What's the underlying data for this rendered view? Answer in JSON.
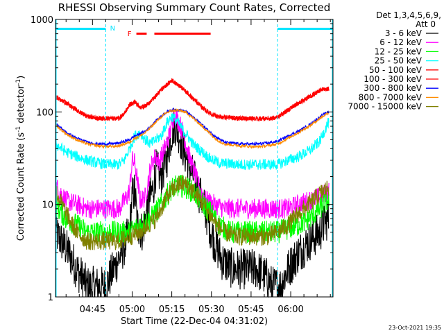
{
  "chart_data": {
    "type": "line",
    "title": "RHESSI Observing Summary Count Rates, Corrected",
    "xlabel": "Start Time (22-Dec-04 04:31:02)",
    "ylabel_main": "Corrected Count Rate (s",
    "ylabel_sup1": "-1",
    "ylabel_mid": " detector",
    "ylabel_sup2": "-1",
    "ylabel_end": ")",
    "yscale": "log",
    "ylim": [
      1,
      1000
    ],
    "xlim_min": [
      0,
      105
    ],
    "x_tick_labels": [
      {
        "label": "04:45",
        "min": 14
      },
      {
        "label": "05:00",
        "min": 29
      },
      {
        "label": "05:15",
        "min": 44
      },
      {
        "label": "05:30",
        "min": 59
      },
      {
        "label": "05:45",
        "min": 74
      },
      {
        "label": "06:00",
        "min": 89
      }
    ],
    "y_tick_labels": [
      {
        "label": "1",
        "value": 1
      },
      {
        "label": "10",
        "value": 10
      },
      {
        "label": "100",
        "value": 100
      },
      {
        "label": "1000",
        "value": 1000
      }
    ],
    "legend": {
      "position": "top-right",
      "header_line1": "Det 1,3,4,5,6,9,",
      "header_line2": "Att 0"
    },
    "night_intervals": [
      {
        "start": 0,
        "end": 19
      },
      {
        "start": 84,
        "end": 105
      }
    ],
    "night_marker": "N",
    "flare_marker": "F",
    "flare_intervals": [
      {
        "start": 30.6,
        "end": 34.5
      },
      {
        "start": 37.4,
        "end": 58.7
      }
    ],
    "series": [
      {
        "name": "3 - 6 keV",
        "color": "#000000",
        "pts": [
          [
            0,
            5
          ],
          [
            5,
            3
          ],
          [
            8,
            2
          ],
          [
            12,
            1.3
          ],
          [
            16,
            1.3
          ],
          [
            19,
            1.3
          ],
          [
            22,
            2
          ],
          [
            25,
            3
          ],
          [
            28,
            5
          ],
          [
            29,
            12
          ],
          [
            30,
            14
          ],
          [
            31,
            6
          ],
          [
            33,
            5
          ],
          [
            35,
            10
          ],
          [
            37,
            15
          ],
          [
            38,
            24
          ],
          [
            40,
            20
          ],
          [
            42,
            30
          ],
          [
            44,
            60
          ],
          [
            45,
            75
          ],
          [
            47,
            55
          ],
          [
            49,
            35
          ],
          [
            51,
            25
          ],
          [
            53,
            17
          ],
          [
            55,
            12
          ],
          [
            57,
            8
          ],
          [
            60,
            4
          ],
          [
            63,
            2.5
          ],
          [
            67,
            2
          ],
          [
            72,
            2
          ],
          [
            76,
            2
          ],
          [
            80,
            1.6
          ],
          [
            82,
            1.3
          ],
          [
            85,
            1.3
          ],
          [
            88,
            2
          ],
          [
            92,
            3
          ],
          [
            96,
            4
          ],
          [
            100,
            5
          ],
          [
            103,
            7
          ]
        ]
      },
      {
        "name": "6 - 12 keV",
        "color": "#ff00ff",
        "pts": [
          [
            0,
            16
          ],
          [
            4,
            11
          ],
          [
            8,
            10
          ],
          [
            12,
            9
          ],
          [
            18,
            9
          ],
          [
            24,
            9
          ],
          [
            27,
            12
          ],
          [
            28,
            14
          ],
          [
            29,
            30
          ],
          [
            30,
            28
          ],
          [
            31,
            18
          ],
          [
            32,
            11
          ],
          [
            34,
            12
          ],
          [
            36,
            25
          ],
          [
            37,
            30
          ],
          [
            38,
            34
          ],
          [
            39,
            28
          ],
          [
            41,
            38
          ],
          [
            43,
            55
          ],
          [
            45,
            95
          ],
          [
            47,
            75
          ],
          [
            49,
            50
          ],
          [
            51,
            30
          ],
          [
            53,
            20
          ],
          [
            55,
            14
          ],
          [
            57,
            11
          ],
          [
            60,
            10
          ],
          [
            64,
            9
          ],
          [
            70,
            9
          ],
          [
            76,
            9
          ],
          [
            82,
            9
          ],
          [
            88,
            9
          ],
          [
            92,
            10
          ],
          [
            96,
            11
          ],
          [
            100,
            12
          ],
          [
            103,
            14
          ]
        ]
      },
      {
        "name": "12 - 25 keV",
        "color": "#00ff00",
        "pts": [
          [
            0,
            10
          ],
          [
            4,
            7
          ],
          [
            8,
            6
          ],
          [
            12,
            5
          ],
          [
            18,
            5
          ],
          [
            24,
            5
          ],
          [
            28,
            5
          ],
          [
            32,
            6
          ],
          [
            36,
            7
          ],
          [
            40,
            10
          ],
          [
            44,
            15
          ],
          [
            47,
            16
          ],
          [
            50,
            15
          ],
          [
            53,
            13
          ],
          [
            56,
            10
          ],
          [
            59,
            8
          ],
          [
            62,
            6
          ],
          [
            66,
            5
          ],
          [
            72,
            5
          ],
          [
            78,
            5
          ],
          [
            84,
            5
          ],
          [
            88,
            5.5
          ],
          [
            92,
            6
          ],
          [
            96,
            7
          ],
          [
            100,
            9
          ],
          [
            103,
            11
          ]
        ]
      },
      {
        "name": "25 - 50 keV",
        "color": "#00ffff",
        "pts": [
          [
            0,
            45
          ],
          [
            4,
            37
          ],
          [
            8,
            33
          ],
          [
            12,
            30
          ],
          [
            16,
            28
          ],
          [
            20,
            27
          ],
          [
            24,
            27
          ],
          [
            26,
            30
          ],
          [
            28,
            40
          ],
          [
            30,
            55
          ],
          [
            32,
            60
          ],
          [
            34,
            50
          ],
          [
            36,
            45
          ],
          [
            38,
            50
          ],
          [
            40,
            55
          ],
          [
            42,
            75
          ],
          [
            44,
            90
          ],
          [
            46,
            80
          ],
          [
            48,
            65
          ],
          [
            50,
            55
          ],
          [
            52,
            45
          ],
          [
            55,
            38
          ],
          [
            58,
            32
          ],
          [
            62,
            28
          ],
          [
            70,
            27
          ],
          [
            80,
            27
          ],
          [
            84,
            27
          ],
          [
            88,
            30
          ],
          [
            92,
            33
          ],
          [
            96,
            38
          ],
          [
            100,
            48
          ],
          [
            103,
            75
          ]
        ]
      },
      {
        "name": "50 - 100 keV",
        "color": "#ff0000",
        "pts": [
          [
            0,
            145
          ],
          [
            3,
            130
          ],
          [
            6,
            115
          ],
          [
            9,
            100
          ],
          [
            12,
            90
          ],
          [
            16,
            85
          ],
          [
            20,
            85
          ],
          [
            24,
            85
          ],
          [
            26,
            95
          ],
          [
            28,
            120
          ],
          [
            30,
            128
          ],
          [
            32,
            112
          ],
          [
            34,
            115
          ],
          [
            36,
            130
          ],
          [
            38,
            150
          ],
          [
            40,
            175
          ],
          [
            42,
            195
          ],
          [
            44,
            220
          ],
          [
            46,
            200
          ],
          [
            48,
            180
          ],
          [
            50,
            160
          ],
          [
            52,
            140
          ],
          [
            55,
            115
          ],
          [
            58,
            98
          ],
          [
            62,
            88
          ],
          [
            70,
            85
          ],
          [
            78,
            85
          ],
          [
            82,
            85
          ],
          [
            84,
            88
          ],
          [
            87,
            100
          ],
          [
            90,
            115
          ],
          [
            93,
            130
          ],
          [
            96,
            145
          ],
          [
            99,
            165
          ],
          [
            102,
            180
          ],
          [
            103,
            178
          ]
        ]
      },
      {
        "name": "100 - 300 keV",
        "color": "#ff0000",
        "pts": [
          [
            0,
            145
          ],
          [
            3,
            130
          ],
          [
            6,
            115
          ],
          [
            9,
            100
          ],
          [
            12,
            90
          ],
          [
            16,
            85
          ],
          [
            20,
            85
          ],
          [
            24,
            85
          ],
          [
            26,
            95
          ],
          [
            28,
            120
          ],
          [
            30,
            128
          ],
          [
            32,
            112
          ],
          [
            34,
            115
          ],
          [
            36,
            130
          ],
          [
            38,
            150
          ],
          [
            40,
            175
          ],
          [
            42,
            195
          ],
          [
            44,
            220
          ],
          [
            46,
            200
          ],
          [
            48,
            180
          ],
          [
            50,
            160
          ],
          [
            52,
            140
          ],
          [
            55,
            115
          ],
          [
            58,
            98
          ],
          [
            62,
            88
          ],
          [
            70,
            85
          ],
          [
            78,
            85
          ],
          [
            82,
            85
          ],
          [
            84,
            88
          ],
          [
            87,
            100
          ],
          [
            90,
            115
          ],
          [
            93,
            130
          ],
          [
            96,
            145
          ],
          [
            99,
            165
          ],
          [
            102,
            180
          ],
          [
            103,
            178
          ]
        ]
      },
      {
        "name": "300 - 800 keV",
        "color": "#0000ff",
        "pts": [
          [
            0,
            75
          ],
          [
            4,
            60
          ],
          [
            8,
            52
          ],
          [
            12,
            47
          ],
          [
            16,
            45
          ],
          [
            20,
            45
          ],
          [
            24,
            46
          ],
          [
            28,
            50
          ],
          [
            30,
            55
          ],
          [
            32,
            58
          ],
          [
            34,
            62
          ],
          [
            36,
            70
          ],
          [
            38,
            80
          ],
          [
            40,
            90
          ],
          [
            42,
            100
          ],
          [
            44,
            105
          ],
          [
            46,
            106
          ],
          [
            48,
            104
          ],
          [
            50,
            98
          ],
          [
            52,
            88
          ],
          [
            55,
            75
          ],
          [
            58,
            62
          ],
          [
            61,
            53
          ],
          [
            64,
            47
          ],
          [
            70,
            45
          ],
          [
            76,
            45
          ],
          [
            80,
            46
          ],
          [
            84,
            48
          ],
          [
            88,
            55
          ],
          [
            92,
            62
          ],
          [
            96,
            72
          ],
          [
            100,
            88
          ],
          [
            103,
            100
          ]
        ]
      },
      {
        "name": "800 - 7000 keV",
        "color": "#ff8c00",
        "pts": [
          [
            0,
            72
          ],
          [
            4,
            58
          ],
          [
            8,
            50
          ],
          [
            12,
            45
          ],
          [
            16,
            43
          ],
          [
            20,
            42
          ],
          [
            24,
            43
          ],
          [
            28,
            47
          ],
          [
            30,
            52
          ],
          [
            32,
            55
          ],
          [
            34,
            60
          ],
          [
            36,
            68
          ],
          [
            38,
            78
          ],
          [
            40,
            88
          ],
          [
            42,
            98
          ],
          [
            44,
            103
          ],
          [
            46,
            104
          ],
          [
            48,
            102
          ],
          [
            50,
            96
          ],
          [
            52,
            86
          ],
          [
            55,
            72
          ],
          [
            58,
            60
          ],
          [
            61,
            50
          ],
          [
            64,
            45
          ],
          [
            70,
            43
          ],
          [
            76,
            42
          ],
          [
            80,
            43
          ],
          [
            84,
            45
          ],
          [
            88,
            52
          ],
          [
            92,
            60
          ],
          [
            96,
            70
          ],
          [
            100,
            85
          ],
          [
            103,
            97
          ]
        ]
      },
      {
        "name": "7000 - 15000 keV",
        "color": "#808000",
        "pts": [
          [
            0,
            14
          ],
          [
            4,
            8
          ],
          [
            8,
            5
          ],
          [
            12,
            4
          ],
          [
            16,
            4
          ],
          [
            20,
            4
          ],
          [
            24,
            4
          ],
          [
            28,
            4.5
          ],
          [
            32,
            5
          ],
          [
            35,
            6
          ],
          [
            38,
            7
          ],
          [
            40,
            9
          ],
          [
            42,
            12
          ],
          [
            44,
            14
          ],
          [
            46,
            16
          ],
          [
            48,
            17
          ],
          [
            50,
            16
          ],
          [
            52,
            14
          ],
          [
            55,
            11
          ],
          [
            58,
            8
          ],
          [
            61,
            6
          ],
          [
            64,
            5
          ],
          [
            68,
            4.5
          ],
          [
            74,
            4.5
          ],
          [
            80,
            4.5
          ],
          [
            84,
            5
          ],
          [
            88,
            6
          ],
          [
            92,
            8
          ],
          [
            96,
            10
          ],
          [
            100,
            13
          ],
          [
            103,
            15
          ]
        ]
      }
    ],
    "grid": false
  },
  "timestamp": "23-Oct-2021 19:35"
}
